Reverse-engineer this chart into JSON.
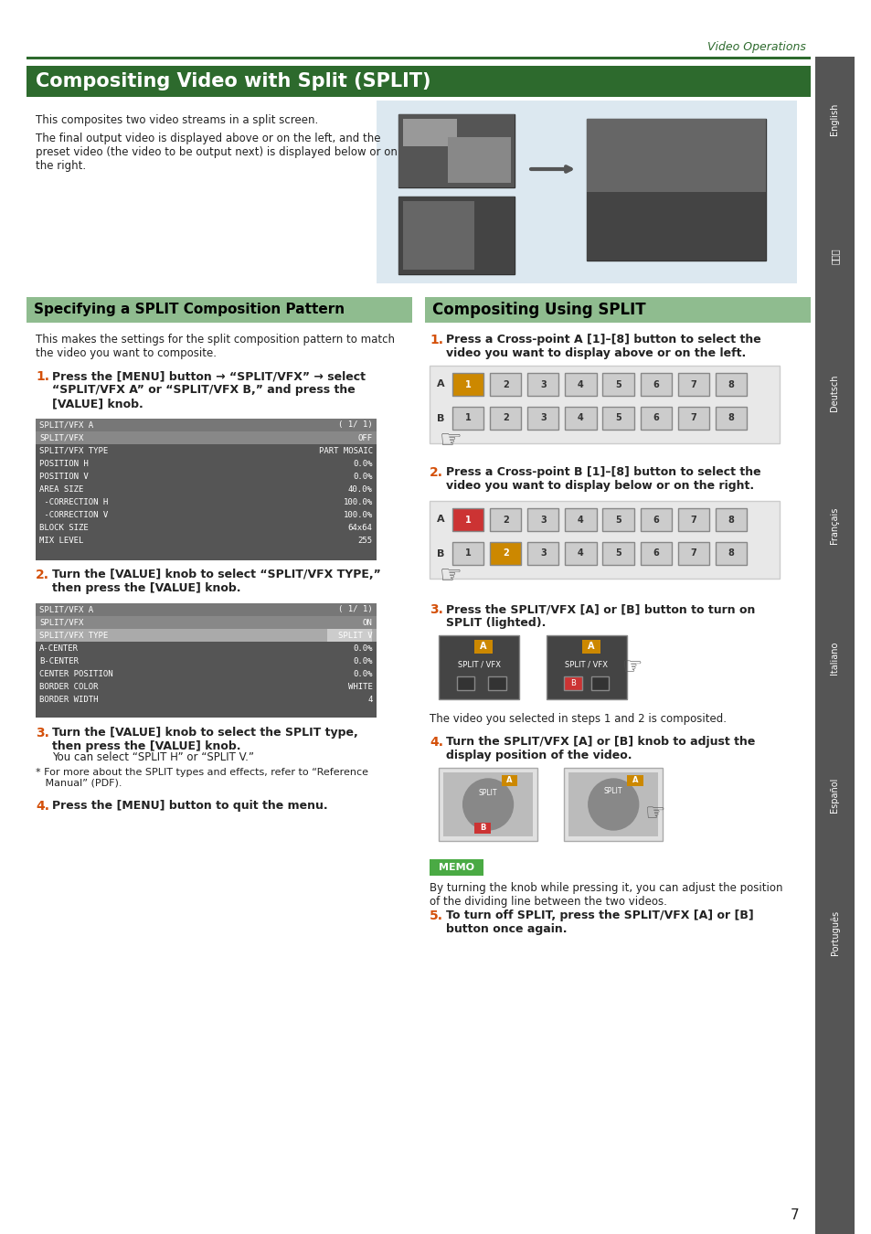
{
  "page_bg": "#ffffff",
  "top_label": "Video Operations",
  "top_label_color": "#2d6a2d",
  "top_line_color": "#2d6a2d",
  "main_title": "Compositing Video with Split (SPLIT)",
  "main_title_bg": "#2d6a2d",
  "main_title_color": "#ffffff",
  "intro_text1": "This composites two video streams in a split screen.",
  "intro_text2": "The final output video is displayed above or on the left, and the\npreset video (the video to be output next) is displayed below or on\nthe right.",
  "section1_title": "Specifying a SPLIT Composition Pattern",
  "section2_title": "Compositing Using SPLIT",
  "section_title_bg": "#8fbc8f",
  "section_title_color": "#000000",
  "sidebar_bg": "#555555",
  "sidebar_labels": [
    "English",
    "日本語",
    "Deutsch",
    "Français",
    "Italiano",
    "Español",
    "Português"
  ],
  "page_number": "7",
  "step1_left_num": "1",
  "step1_left_text": "Press the [MENU] button → “SPLIT/VFX” → select\n“SPLIT/VFX A” or “SPLIT/VFX B,” and press the\n[VALUE] knob.",
  "menu1_rows": [
    [
      "SPLIT/VFX A",
      "( 1/ 1)"
    ],
    [
      "SPLIT/VFX",
      "OFF"
    ],
    [
      "SPLIT/VFX TYPE",
      "PART MOSAIC"
    ],
    [
      "POSITION H",
      "0.0%"
    ],
    [
      "POSITION V",
      "0.0%"
    ],
    [
      "AREA SIZE",
      "40.0%"
    ],
    [
      " -CORRECTION H",
      "100.0%"
    ],
    [
      " -CORRECTION V",
      "100.0%"
    ],
    [
      "BLOCK SIZE",
      "64x64"
    ],
    [
      "MIX LEVEL",
      "255"
    ]
  ],
  "step2_left_num": "2",
  "step2_left_text": "Turn the [VALUE] knob to select “SPLIT/VFX TYPE,”\nthen press the [VALUE] knob.",
  "menu2_rows": [
    [
      "SPLIT/VFX A",
      "( 1/ 1)"
    ],
    [
      "SPLIT/VFX",
      "ON"
    ],
    [
      "SPLIT/VFX TYPE",
      "SPLIT V"
    ],
    [
      "A-CENTER",
      "0.0%"
    ],
    [
      "B-CENTER",
      "0.0%"
    ],
    [
      "CENTER POSITION",
      "0.0%"
    ],
    [
      "BORDER COLOR",
      "WHITE"
    ],
    [
      "BORDER WIDTH",
      "4"
    ]
  ],
  "step3_left_num": "3",
  "step3_left_text": "Turn the [VALUE] knob to select the SPLIT type,\nthen press the [VALUE] knob.",
  "step3_sub1": "You can select “SPLIT H” or “SPLIT V.”",
  "step3_note": "* For more about the SPLIT types and effects, refer to “Reference\n   Manual” (PDF).",
  "step4_left_num": "4",
  "step4_left_text": "Press the [MENU] button to quit the menu.",
  "step1_right_num": "1",
  "step1_right_text": "Press a Cross-point A [1]–[8] button to select the\nvideo you want to display above or on the left.",
  "step2_right_num": "2",
  "step2_right_text": "Press a Cross-point B [1]–[8] button to select the\nvideo you want to display below or on the right.",
  "step3_right_num": "3",
  "step3_right_text": "Press the SPLIT/VFX [A] or [B] button to turn on\nSPLIT (lighted).",
  "step3_right_note": "The video you selected in steps 1 and 2 is composited.",
  "step4_right_num": "4",
  "step4_right_text": "Turn the SPLIT/VFX [A] or [B] knob to adjust the\ndisplay position of the video.",
  "step5_right_num": "5",
  "step5_right_text": "To turn off SPLIT, press the SPLIT/VFX [A] or [B]\nbutton once again.",
  "memo_text": "By turning the knob while pressing it, you can adjust the position\nof the dividing line between the two videos.",
  "num_color_orange": "#d4500a",
  "num_color_blue": "#1a6aaa",
  "text_color_dark": "#222222",
  "menu_bg": "#555555",
  "menu_header_bg": "#777777",
  "menu_highlight_bg": "#aaaaaa",
  "menu_text_color": "#ffffff",
  "menu_highlight_text": "#ffffff",
  "crosspoint_bg": "#dddddd",
  "image_panel_bg": "#dce8f0"
}
